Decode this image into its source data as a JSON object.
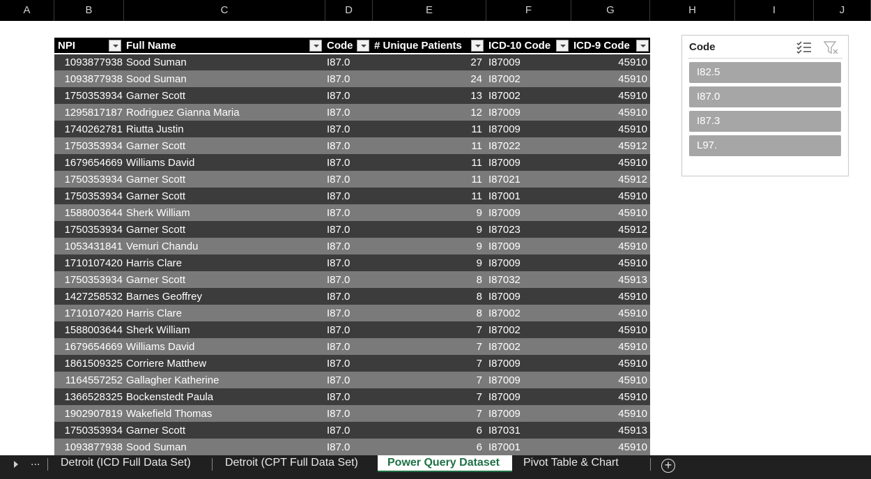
{
  "column_headers": [
    "A",
    "B",
    "C",
    "D",
    "E",
    "F",
    "G",
    "H",
    "I",
    "J"
  ],
  "table": {
    "headers": [
      "NPI",
      "Full Name",
      "Code",
      "# Unique Patients",
      "ICD-10 Code",
      "ICD-9 Code"
    ],
    "rows": [
      [
        "1093877938",
        "Sood Suman",
        "I87.0",
        "27",
        "I87009",
        "45910"
      ],
      [
        "1093877938",
        "Sood Suman",
        "I87.0",
        "24",
        "I87002",
        "45910"
      ],
      [
        "1750353934",
        "Garner Scott",
        "I87.0",
        "13",
        "I87002",
        "45910"
      ],
      [
        "1295817187",
        "Rodriguez Gianna Maria",
        "I87.0",
        "12",
        "I87009",
        "45910"
      ],
      [
        "1740262781",
        "Riutta Justin",
        "I87.0",
        "11",
        "I87009",
        "45910"
      ],
      [
        "1750353934",
        "Garner Scott",
        "I87.0",
        "11",
        "I87022",
        "45912"
      ],
      [
        "1679654669",
        "Williams David",
        "I87.0",
        "11",
        "I87009",
        "45910"
      ],
      [
        "1750353934",
        "Garner Scott",
        "I87.0",
        "11",
        "I87021",
        "45912"
      ],
      [
        "1750353934",
        "Garner Scott",
        "I87.0",
        "11",
        "I87001",
        "45910"
      ],
      [
        "1588003644",
        "Sherk William",
        "I87.0",
        "9",
        "I87009",
        "45910"
      ],
      [
        "1750353934",
        "Garner Scott",
        "I87.0",
        "9",
        "I87023",
        "45912"
      ],
      [
        "1053431841",
        "Vemuri Chandu",
        "I87.0",
        "9",
        "I87009",
        "45910"
      ],
      [
        "1710107420",
        "Harris Clare",
        "I87.0",
        "9",
        "I87009",
        "45910"
      ],
      [
        "1750353934",
        "Garner Scott",
        "I87.0",
        "8",
        "I87032",
        "45913"
      ],
      [
        "1427258532",
        "Barnes Geoffrey",
        "I87.0",
        "8",
        "I87009",
        "45910"
      ],
      [
        "1710107420",
        "Harris Clare",
        "I87.0",
        "8",
        "I87002",
        "45910"
      ],
      [
        "1588003644",
        "Sherk William",
        "I87.0",
        "7",
        "I87002",
        "45910"
      ],
      [
        "1679654669",
        "Williams David",
        "I87.0",
        "7",
        "I87002",
        "45910"
      ],
      [
        "1861509325",
        "Corriere Matthew",
        "I87.0",
        "7",
        "I87009",
        "45910"
      ],
      [
        "1164557252",
        "Gallagher Katherine",
        "I87.0",
        "7",
        "I87009",
        "45910"
      ],
      [
        "1366528325",
        "Bockenstedt Paula",
        "I87.0",
        "7",
        "I87009",
        "45910"
      ],
      [
        "1902907819",
        "Wakefield Thomas",
        "I87.0",
        "7",
        "I87009",
        "45910"
      ],
      [
        "1750353934",
        "Garner Scott",
        "I87.0",
        "6",
        "I87031",
        "45913"
      ],
      [
        "1093877938",
        "Sood Suman",
        "I87.0",
        "6",
        "I87001",
        "45910"
      ]
    ]
  },
  "slicer": {
    "title": "Code",
    "items": [
      "I82.5",
      "I87.0",
      "I87.3",
      "L97."
    ],
    "icons": [
      "multi-select-icon",
      "clear-filter-icon"
    ]
  },
  "tabs": {
    "items": [
      "Detroit (ICD Full Data Set)",
      "Detroit (CPT Full Data Set)",
      "Power Query Dataset",
      "Pivot Table & Chart"
    ],
    "active": "Power Query Dataset",
    "more": "...",
    "add": "+"
  },
  "colors": {
    "row_dark": "#3c3c3c",
    "row_light": "#7a7a7a",
    "header_bg": "#000000",
    "active_tab": "#1e7145",
    "slicer_item": "#a6a6a6"
  }
}
